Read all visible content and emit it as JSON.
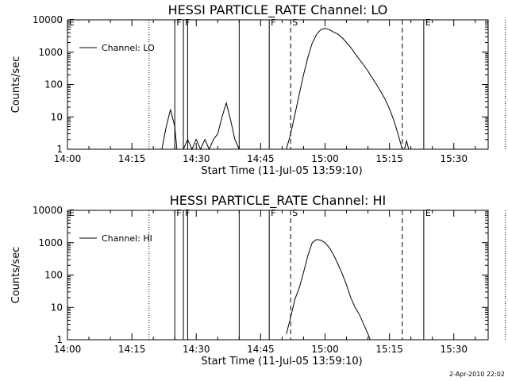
{
  "timestamp": "2-Apr-2010 22:02",
  "chart_data": [
    {
      "type": "line",
      "title": "HESSI PARTICLE_RATE Channel: LO",
      "xlabel": "Start Time (11-Jul-05 13:59:10)",
      "ylabel": "Counts/sec",
      "yscale": "log",
      "xlim": [
        "14:00",
        "15:38"
      ],
      "ylim": [
        1,
        10000
      ],
      "x_ticks": [
        "14:00",
        "14:15",
        "14:30",
        "14:45",
        "15:00",
        "15:15",
        "15:30"
      ],
      "y_ticks": [
        "1",
        "10",
        "100",
        "1000",
        "10000"
      ],
      "legend": {
        "label": "Channel: LO",
        "position": "top-left"
      },
      "markers": [
        {
          "label": "E",
          "time": "14:00",
          "style": "solid"
        },
        {
          "label": "",
          "time": "14:19",
          "style": "dotted"
        },
        {
          "label": "F",
          "time": "14:25",
          "style": "solid"
        },
        {
          "label": "F",
          "time": "14:27",
          "style": "solid"
        },
        {
          "label": "",
          "time": "14:28",
          "style": "solid"
        },
        {
          "label": "",
          "time": "14:40",
          "style": "solid"
        },
        {
          "label": "F",
          "time": "14:47",
          "style": "solid"
        },
        {
          "label": "S",
          "time": "14:52",
          "style": "dashed"
        },
        {
          "label": "",
          "time": "15:18",
          "style": "dashed"
        },
        {
          "label": "E",
          "time": "15:23",
          "style": "solid"
        },
        {
          "label": "",
          "time": "15:42",
          "style": "dotted"
        }
      ],
      "series": [
        {
          "name": "Channel: LO",
          "segments": [
            [
              [
                "14:22",
                1
              ],
              [
                "14:23",
                5
              ],
              [
                "14:24",
                17
              ],
              [
                "14:25",
                5
              ],
              [
                "14:25.5",
                1
              ]
            ],
            [
              [
                "14:27",
                1
              ],
              [
                "14:28",
                2
              ],
              [
                "14:29",
                1
              ],
              [
                "14:30",
                2
              ],
              [
                "14:31",
                1
              ],
              [
                "14:32",
                2
              ],
              [
                "14:33",
                1
              ],
              [
                "14:34",
                2
              ],
              [
                "14:35",
                3
              ],
              [
                "14:36",
                10
              ],
              [
                "14:37",
                27
              ],
              [
                "14:38",
                8
              ],
              [
                "14:39",
                2
              ],
              [
                "14:40",
                1
              ]
            ],
            [
              [
                "14:51",
                1
              ],
              [
                "14:52",
                3
              ],
              [
                "14:53",
                12
              ],
              [
                "14:54",
                50
              ],
              [
                "14:55",
                200
              ],
              [
                "14:56",
                700
              ],
              [
                "14:57",
                1900
              ],
              [
                "14:58",
                3500
              ],
              [
                "14:59",
                5000
              ],
              [
                "15:00",
                5500
              ],
              [
                "15:01",
                5000
              ],
              [
                "15:02",
                4200
              ],
              [
                "15:03",
                3600
              ],
              [
                "15:04",
                2800
              ],
              [
                "15:05",
                2000
              ],
              [
                "15:06",
                1400
              ],
              [
                "15:07",
                900
              ],
              [
                "15:08",
                600
              ],
              [
                "15:09",
                400
              ],
              [
                "15:10",
                260
              ],
              [
                "15:11",
                160
              ],
              [
                "15:12",
                100
              ],
              [
                "15:13",
                60
              ],
              [
                "15:14",
                35
              ],
              [
                "15:15",
                18
              ],
              [
                "15:16",
                8
              ],
              [
                "15:17",
                3
              ],
              [
                "15:18",
                1
              ]
            ],
            [
              [
                "15:18.5",
                1
              ],
              [
                "15:19",
                1.8
              ],
              [
                "15:19.5",
                1
              ]
            ]
          ]
        }
      ]
    },
    {
      "type": "line",
      "title": "HESSI PARTICLE_RATE Channel: HI",
      "xlabel": "Start Time (11-Jul-05 13:59:10)",
      "ylabel": "Counts/sec",
      "yscale": "log",
      "xlim": [
        "14:00",
        "15:38"
      ],
      "ylim": [
        1,
        10000
      ],
      "x_ticks": [
        "14:00",
        "14:15",
        "14:30",
        "14:45",
        "15:00",
        "15:15",
        "15:30"
      ],
      "y_ticks": [
        "1",
        "10",
        "100",
        "1000",
        "10000"
      ],
      "legend": {
        "label": "Channel: HI",
        "position": "top-left"
      },
      "markers": [
        {
          "label": "E",
          "time": "14:00",
          "style": "solid"
        },
        {
          "label": "",
          "time": "14:19",
          "style": "dotted"
        },
        {
          "label": "F",
          "time": "14:25",
          "style": "solid"
        },
        {
          "label": "F",
          "time": "14:27",
          "style": "solid"
        },
        {
          "label": "",
          "time": "14:28",
          "style": "solid"
        },
        {
          "label": "",
          "time": "14:40",
          "style": "solid"
        },
        {
          "label": "F",
          "time": "14:47",
          "style": "solid"
        },
        {
          "label": "S",
          "time": "14:52",
          "style": "dashed"
        },
        {
          "label": "",
          "time": "15:18",
          "style": "dashed"
        },
        {
          "label": "E",
          "time": "15:23",
          "style": "solid"
        },
        {
          "label": "",
          "time": "15:42",
          "style": "dotted"
        }
      ],
      "series": [
        {
          "name": "Channel: HI",
          "segments": [
            [
              [
                "14:51",
                1.5
              ],
              [
                "14:52",
                5
              ],
              [
                "14:53",
                18
              ],
              [
                "14:54",
                40
              ],
              [
                "14:55",
                120
              ],
              [
                "14:56",
                400
              ],
              [
                "14:57",
                1000
              ],
              [
                "14:58",
                1250
              ],
              [
                "14:59",
                1200
              ],
              [
                "15:00",
                1000
              ],
              [
                "15:01",
                700
              ],
              [
                "15:02",
                420
              ],
              [
                "15:03",
                220
              ],
              [
                "15:04",
                110
              ],
              [
                "15:05",
                50
              ],
              [
                "15:06",
                20
              ],
              [
                "15:07",
                10
              ],
              [
                "15:08",
                6
              ],
              [
                "15:09",
                3
              ],
              [
                "15:10",
                1.5
              ],
              [
                "15:10.5",
                1
              ]
            ]
          ]
        }
      ]
    }
  ]
}
